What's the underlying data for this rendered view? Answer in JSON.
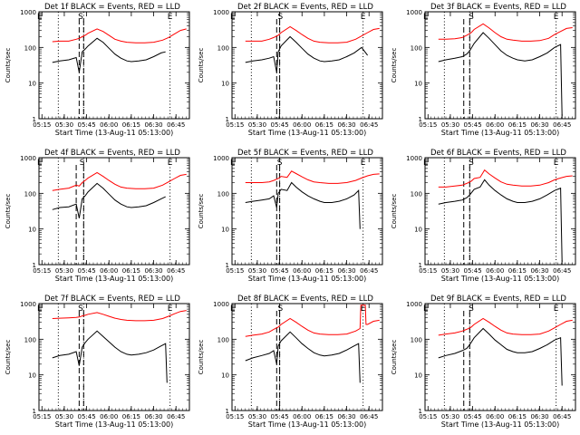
{
  "colors": {
    "background": "#ffffff",
    "axis": "#000000",
    "events": "#000000",
    "lld": "#ff0000"
  },
  "shared": {
    "xlabel": "Start Time (13-Aug-11 05:13:00)",
    "ylabel": "Counts/sec",
    "x_ticks": [
      "05:15",
      "05:30",
      "05:45",
      "06:00",
      "06:15",
      "06:30",
      "06:45"
    ],
    "x_tick_minutes": [
      15,
      30,
      45,
      60,
      75,
      90,
      105
    ],
    "xlim_minutes": [
      13,
      114
    ],
    "ylim": [
      1,
      1000
    ],
    "y_scale": "log",
    "y_ticks": [
      "1",
      "10",
      "100",
      "1000"
    ],
    "y_tick_values": [
      1,
      10,
      100,
      1000
    ]
  },
  "chart_data": [
    {
      "type": "line",
      "title": "Det 1f BLACK = Events, RED = LLD",
      "markers": [
        "E",
        "S",
        "E"
      ],
      "marker_x": [
        13.5,
        41,
        101
      ],
      "dotted_x": [
        26,
        43,
        101
      ],
      "dashed_x": [
        40,
        43
      ],
      "series": [
        {
          "name": "Events",
          "color": "black",
          "x": [
            22,
            27,
            33,
            38,
            40,
            42,
            44,
            46,
            52,
            56,
            60,
            64,
            68,
            72,
            75,
            80,
            85,
            90,
            95,
            98
          ],
          "values": [
            38,
            42,
            45,
            52,
            20,
            75,
            90,
            110,
            180,
            140,
            95,
            65,
            50,
            42,
            40,
            42,
            45,
            55,
            70,
            75
          ]
        },
        {
          "name": "LLD",
          "color": "red",
          "x": [
            22,
            27,
            33,
            38,
            40,
            42,
            44,
            46,
            52,
            56,
            60,
            64,
            68,
            72,
            78,
            84,
            90,
            96,
            100,
            104,
            108,
            112
          ],
          "values": [
            145,
            150,
            150,
            170,
            180,
            200,
            220,
            250,
            330,
            280,
            220,
            170,
            150,
            140,
            135,
            135,
            140,
            160,
            190,
            240,
            300,
            330
          ]
        }
      ]
    },
    {
      "type": "line",
      "title": "Det 2f BLACK = Events, RED = LLD",
      "markers": [
        "E",
        "S",
        "E"
      ],
      "marker_x": [
        13.5,
        45.5,
        101
      ],
      "dotted_x": [
        26,
        45,
        101
      ],
      "dashed_x": [
        43,
        45
      ],
      "series": [
        {
          "name": "Events",
          "color": "black",
          "x": [
            22,
            27,
            33,
            38,
            41,
            43,
            44,
            46,
            52,
            56,
            60,
            64,
            68,
            72,
            75,
            80,
            85,
            90,
            95,
            100,
            104
          ],
          "values": [
            38,
            42,
            45,
            50,
            55,
            20,
            75,
            110,
            200,
            140,
            95,
            65,
            50,
            42,
            40,
            42,
            45,
            55,
            70,
            100,
            60
          ]
        },
        {
          "name": "LLD",
          "color": "red",
          "x": [
            22,
            27,
            33,
            38,
            41,
            44,
            46,
            52,
            56,
            60,
            64,
            68,
            72,
            78,
            84,
            90,
            96,
            100,
            104,
            108,
            112
          ],
          "values": [
            150,
            150,
            150,
            170,
            190,
            220,
            260,
            380,
            300,
            230,
            180,
            150,
            140,
            135,
            135,
            140,
            170,
            210,
            260,
            320,
            340
          ]
        }
      ]
    },
    {
      "type": "line",
      "title": "Det 3f BLACK = Events, RED = LLD",
      "markers": [
        "E",
        "S",
        "E"
      ],
      "marker_x": [
        13.5,
        44,
        101
      ],
      "dotted_x": [
        26,
        43,
        101
      ],
      "dashed_x": [
        39,
        43
      ],
      "series": [
        {
          "name": "Events",
          "color": "black",
          "x": [
            22,
            27,
            33,
            38,
            41,
            43,
            46,
            52,
            56,
            60,
            64,
            68,
            72,
            75,
            80,
            85,
            90,
            95,
            100,
            104,
            105
          ],
          "values": [
            40,
            45,
            50,
            55,
            65,
            80,
            130,
            260,
            180,
            120,
            80,
            60,
            50,
            45,
            42,
            45,
            55,
            70,
            100,
            120,
            1.2
          ]
        },
        {
          "name": "LLD",
          "color": "red",
          "x": [
            22,
            27,
            33,
            38,
            41,
            44,
            46,
            52,
            56,
            60,
            64,
            68,
            72,
            78,
            84,
            90,
            96,
            100,
            104,
            108,
            112
          ],
          "values": [
            170,
            170,
            175,
            190,
            220,
            260,
            320,
            460,
            350,
            260,
            200,
            170,
            160,
            150,
            150,
            155,
            180,
            230,
            280,
            340,
            360
          ]
        }
      ]
    },
    {
      "type": "line",
      "title": "Det 4f BLACK = Events, RED = LLD",
      "markers": [
        "E",
        "S",
        "E"
      ],
      "marker_x": [
        13.5,
        42,
        101
      ],
      "dotted_x": [
        26,
        43,
        101
      ],
      "dashed_x": [
        38,
        43
      ],
      "series": [
        {
          "name": "Events",
          "color": "black",
          "x": [
            22,
            27,
            33,
            38,
            40,
            42,
            44,
            46,
            52,
            56,
            60,
            64,
            68,
            72,
            75,
            80,
            85,
            90,
            95,
            98
          ],
          "values": [
            35,
            40,
            42,
            50,
            20,
            70,
            85,
            110,
            190,
            140,
            95,
            65,
            50,
            42,
            40,
            42,
            45,
            55,
            70,
            80
          ]
        },
        {
          "name": "LLD",
          "color": "red",
          "x": [
            22,
            27,
            33,
            38,
            40,
            42,
            44,
            46,
            52,
            56,
            60,
            64,
            68,
            72,
            78,
            84,
            90,
            96,
            100,
            104,
            108,
            112
          ],
          "values": [
            120,
            130,
            140,
            170,
            160,
            200,
            230,
            270,
            380,
            300,
            230,
            180,
            150,
            140,
            135,
            135,
            140,
            170,
            210,
            260,
            320,
            340
          ]
        }
      ]
    },
    {
      "type": "line",
      "title": "Det 5f BLACK = Events, RED = LLD",
      "markers": [
        "E",
        "S",
        "E"
      ],
      "marker_x": [
        13.5,
        45,
        101
      ],
      "dotted_x": [
        26,
        45,
        101
      ],
      "dashed_x": [
        43,
        45
      ],
      "series": [
        {
          "name": "Events",
          "color": "black",
          "x": [
            22,
            27,
            33,
            38,
            41,
            43,
            44,
            46,
            50,
            53,
            56,
            60,
            64,
            68,
            72,
            75,
            80,
            85,
            90,
            95,
            98,
            99
          ],
          "values": [
            55,
            60,
            65,
            70,
            85,
            40,
            100,
            130,
            120,
            200,
            150,
            110,
            85,
            70,
            60,
            55,
            55,
            60,
            70,
            90,
            120,
            10
          ]
        },
        {
          "name": "LLD",
          "color": "red",
          "x": [
            22,
            27,
            33,
            38,
            41,
            44,
            46,
            50,
            53,
            56,
            60,
            64,
            68,
            72,
            78,
            84,
            90,
            96,
            100,
            104,
            108,
            112
          ],
          "values": [
            200,
            200,
            200,
            210,
            230,
            260,
            300,
            280,
            420,
            360,
            290,
            240,
            210,
            200,
            190,
            190,
            200,
            230,
            270,
            310,
            340,
            350
          ]
        }
      ]
    },
    {
      "type": "line",
      "title": "Det 6f BLACK = Events, RED = LLD",
      "markers": [
        "E",
        "S",
        "E"
      ],
      "marker_x": [
        13.5,
        44,
        101
      ],
      "dotted_x": [
        26,
        43,
        101
      ],
      "dashed_x": [
        39,
        43
      ],
      "series": [
        {
          "name": "Events",
          "color": "black",
          "x": [
            22,
            27,
            33,
            38,
            41,
            43,
            46,
            50,
            53,
            56,
            60,
            64,
            68,
            72,
            75,
            80,
            85,
            90,
            95,
            100,
            104,
            105
          ],
          "values": [
            50,
            55,
            60,
            65,
            75,
            90,
            130,
            150,
            240,
            170,
            120,
            90,
            70,
            60,
            55,
            55,
            60,
            70,
            90,
            120,
            140,
            1.2
          ]
        },
        {
          "name": "LLD",
          "color": "red",
          "x": [
            22,
            27,
            33,
            38,
            41,
            44,
            46,
            50,
            53,
            56,
            60,
            64,
            68,
            72,
            78,
            84,
            90,
            96,
            100,
            104,
            108,
            112
          ],
          "values": [
            150,
            150,
            160,
            170,
            190,
            220,
            260,
            280,
            450,
            350,
            270,
            210,
            180,
            170,
            160,
            160,
            170,
            200,
            240,
            270,
            300,
            310
          ]
        }
      ]
    },
    {
      "type": "line",
      "title": "Det 7f BLACK = Events, RED = LLD",
      "markers": [
        "E",
        "S",
        "E"
      ],
      "marker_x": [
        13.5,
        41,
        101
      ],
      "dotted_x": [
        26,
        43,
        101
      ],
      "dashed_x": [
        40,
        43
      ],
      "series": [
        {
          "name": "Events",
          "color": "black",
          "x": [
            22,
            27,
            33,
            38,
            40,
            42,
            44,
            46,
            52,
            56,
            60,
            64,
            68,
            72,
            75,
            80,
            85,
            90,
            95,
            98,
            99
          ],
          "values": [
            30,
            35,
            38,
            45,
            18,
            60,
            80,
            100,
            170,
            120,
            85,
            60,
            45,
            38,
            36,
            38,
            42,
            50,
            65,
            75,
            6
          ]
        },
        {
          "name": "LLD",
          "color": "red",
          "x": [
            22,
            27,
            33,
            38,
            40,
            42,
            44,
            46,
            52,
            56,
            60,
            64,
            68,
            72,
            78,
            84,
            90,
            96,
            100,
            104,
            108,
            112
          ],
          "values": [
            380,
            390,
            400,
            410,
            420,
            450,
            470,
            500,
            560,
            500,
            440,
            390,
            360,
            340,
            330,
            330,
            340,
            380,
            440,
            520,
            600,
            640
          ]
        }
      ]
    },
    {
      "type": "line",
      "title": "Det 8f BLACK = Events, RED = LLD",
      "markers": [
        "E",
        "S",
        "E"
      ],
      "marker_x": [
        13.5,
        45.5,
        101
      ],
      "dotted_x": [
        26,
        45,
        101
      ],
      "dashed_x": [
        43,
        45
      ],
      "series": [
        {
          "name": "Events",
          "color": "black",
          "x": [
            22,
            27,
            33,
            38,
            41,
            43,
            44,
            46,
            52,
            56,
            60,
            64,
            68,
            72,
            75,
            80,
            85,
            90,
            95,
            98,
            99
          ],
          "values": [
            25,
            30,
            35,
            40,
            48,
            20,
            65,
            90,
            160,
            110,
            75,
            55,
            42,
            36,
            34,
            36,
            40,
            50,
            65,
            75,
            6
          ]
        },
        {
          "name": "LLD",
          "color": "red",
          "x": [
            22,
            27,
            33,
            38,
            41,
            44,
            46,
            52,
            56,
            60,
            64,
            68,
            72,
            78,
            84,
            90,
            96,
            99,
            99.5,
            100,
            102,
            102.5,
            103,
            104,
            108,
            112
          ],
          "values": [
            120,
            130,
            140,
            160,
            190,
            220,
            260,
            380,
            300,
            230,
            180,
            150,
            140,
            135,
            135,
            140,
            170,
            200,
            900,
            900,
            900,
            900,
            260,
            260,
            320,
            340
          ]
        }
      ]
    },
    {
      "type": "line",
      "title": "Det 9f BLACK = Events, RED = LLD",
      "markers": [
        "E",
        "S",
        "E"
      ],
      "marker_x": [
        13.5,
        44,
        101
      ],
      "dotted_x": [
        26,
        43,
        101
      ],
      "dashed_x": [
        39,
        43
      ],
      "series": [
        {
          "name": "Events",
          "color": "black",
          "x": [
            22,
            27,
            33,
            38,
            41,
            43,
            46,
            52,
            56,
            60,
            64,
            68,
            72,
            75,
            80,
            85,
            90,
            95,
            100,
            104,
            105
          ],
          "values": [
            30,
            35,
            40,
            48,
            55,
            70,
            110,
            200,
            140,
            95,
            70,
            52,
            45,
            42,
            42,
            45,
            55,
            70,
            95,
            110,
            5
          ]
        },
        {
          "name": "LLD",
          "color": "red",
          "x": [
            22,
            27,
            33,
            38,
            41,
            44,
            46,
            52,
            56,
            60,
            64,
            68,
            72,
            78,
            84,
            90,
            96,
            100,
            104,
            108,
            112
          ],
          "values": [
            130,
            140,
            150,
            170,
            190,
            220,
            260,
            380,
            300,
            230,
            180,
            150,
            140,
            135,
            135,
            140,
            170,
            210,
            260,
            320,
            340
          ]
        }
      ]
    }
  ]
}
